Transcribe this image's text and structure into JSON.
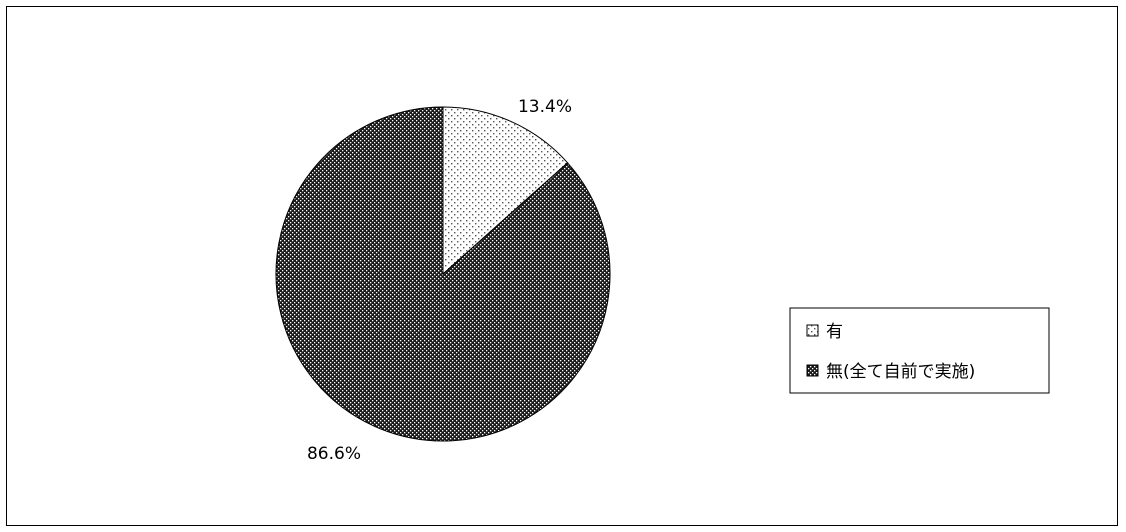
{
  "chart_data": {
    "type": "pie",
    "slices": [
      {
        "label": "有",
        "value": 13.4,
        "display": "13.4%",
        "pattern": "light-dots",
        "color": "#ffffff"
      },
      {
        "label": "無(全て自前で実施)",
        "value": 86.6,
        "display": "86.6%",
        "pattern": "dense-dots",
        "color": "#222222"
      }
    ],
    "start_angle_deg": 0,
    "direction": "clockwise",
    "legend_position": "right"
  }
}
